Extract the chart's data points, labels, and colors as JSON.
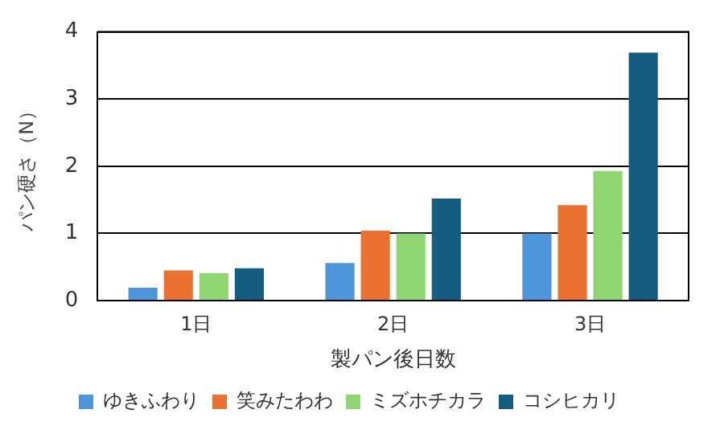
{
  "chart_data": {
    "type": "bar",
    "xlabel": "製パン後日数",
    "ylabel": "パン硬さ（N）",
    "categories": [
      "1日",
      "2日",
      "3日"
    ],
    "series": [
      {
        "name": "ゆきふわり",
        "color": "#4e96dc",
        "values": [
          0.19,
          0.56,
          1.0
        ]
      },
      {
        "name": "笑みたわわ",
        "color": "#eb7130",
        "values": [
          0.45,
          1.04,
          1.42
        ]
      },
      {
        "name": "ミズホチカラ",
        "color": "#8fd672",
        "values": [
          0.41,
          1.0,
          1.93
        ]
      },
      {
        "name": "コシヒカリ",
        "color": "#145c80",
        "values": [
          0.48,
          1.52,
          3.69
        ]
      }
    ],
    "ylim": [
      0,
      4
    ],
    "yticks": [
      0,
      1,
      2,
      3,
      4
    ],
    "grid": "y",
    "legend": "bottom"
  }
}
